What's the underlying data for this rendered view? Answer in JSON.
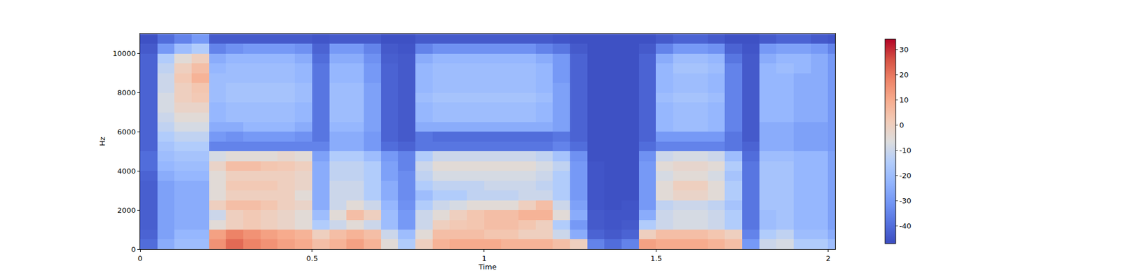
{
  "chart_data": {
    "type": "heatmap",
    "xlabel": "Time",
    "ylabel": "Hz",
    "xlim": [
      0,
      2.02
    ],
    "xticks": [
      0,
      0.5,
      1,
      1.5,
      2
    ],
    "ylim": [
      0,
      11025
    ],
    "yticks": [
      0,
      2000,
      4000,
      6000,
      8000,
      10000
    ],
    "zlim": [
      -47,
      34
    ],
    "zticks": [
      -40,
      -30,
      -20,
      -10,
      0,
      10,
      20,
      30
    ],
    "x": [
      0.025,
      0.075,
      0.125,
      0.175,
      0.225,
      0.275,
      0.325,
      0.375,
      0.425,
      0.475,
      0.525,
      0.575,
      0.625,
      0.675,
      0.725,
      0.775,
      0.825,
      0.875,
      0.925,
      0.975,
      1.025,
      1.075,
      1.125,
      1.175,
      1.225,
      1.275,
      1.325,
      1.375,
      1.425,
      1.475,
      1.525,
      1.575,
      1.625,
      1.675,
      1.725,
      1.775,
      1.825,
      1.875,
      1.925,
      1.975,
      2.025
    ],
    "y": [
      250,
      750,
      1250,
      1750,
      2250,
      2750,
      3250,
      3750,
      4250,
      4750,
      5250,
      5750,
      6250,
      6750,
      7250,
      7750,
      8250,
      8750,
      9250,
      9750,
      10250,
      10750
    ],
    "z": [
      [
        -40,
        -25,
        -20,
        -20,
        15,
        22,
        18,
        15,
        12,
        10,
        5,
        8,
        12,
        8,
        -5,
        -15,
        0,
        8,
        10,
        10,
        10,
        8,
        8,
        8,
        5,
        0,
        -35,
        -40,
        -35,
        12,
        10,
        10,
        10,
        8,
        5,
        -30,
        -10,
        -8,
        -15,
        -15,
        -20
      ],
      [
        -42,
        -28,
        -22,
        -22,
        12,
        18,
        15,
        12,
        10,
        8,
        0,
        5,
        8,
        5,
        -10,
        -20,
        -5,
        5,
        5,
        5,
        3,
        3,
        0,
        0,
        -10,
        -25,
        -42,
        -44,
        -42,
        0,
        5,
        5,
        5,
        3,
        0,
        -35,
        -15,
        -12,
        -20,
        -20,
        -25
      ],
      [
        -43,
        -28,
        -25,
        -25,
        -5,
        0,
        2,
        0,
        -2,
        -5,
        -15,
        -10,
        -5,
        -10,
        -20,
        -30,
        -10,
        0,
        2,
        3,
        5,
        5,
        3,
        0,
        -15,
        -30,
        -44,
        -45,
        -44,
        -15,
        -10,
        -8,
        -8,
        -10,
        -15,
        -38,
        -20,
        -18,
        -22,
        -22,
        -28
      ],
      [
        -43,
        -28,
        -25,
        -25,
        -10,
        0,
        2,
        0,
        -2,
        -5,
        -20,
        -5,
        5,
        0,
        -20,
        -30,
        -10,
        -5,
        0,
        3,
        5,
        5,
        8,
        8,
        -5,
        -25,
        -44,
        -45,
        -45,
        -25,
        -10,
        -8,
        -8,
        -10,
        -15,
        -38,
        -20,
        -18,
        -22,
        -22,
        -28
      ],
      [
        -43,
        -28,
        -25,
        -25,
        0,
        5,
        5,
        3,
        0,
        -2,
        -25,
        -10,
        -5,
        -10,
        -22,
        -32,
        -15,
        -10,
        -8,
        -5,
        -5,
        -5,
        0,
        5,
        -10,
        -28,
        -45,
        -46,
        -45,
        -30,
        -12,
        -10,
        -10,
        -12,
        -18,
        -38,
        -18,
        -18,
        -22,
        -22,
        -28
      ],
      [
        -43,
        -28,
        -25,
        -25,
        -5,
        0,
        0,
        0,
        0,
        -5,
        -25,
        -10,
        -10,
        -15,
        -25,
        -33,
        -20,
        -15,
        -15,
        -12,
        -12,
        -12,
        -10,
        -10,
        -15,
        -30,
        -45,
        -46,
        -46,
        -30,
        -5,
        -2,
        -2,
        -5,
        -15,
        -38,
        -18,
        -18,
        -22,
        -22,
        -28
      ],
      [
        -43,
        -28,
        -25,
        -25,
        -5,
        2,
        2,
        2,
        0,
        -2,
        -25,
        -10,
        -10,
        -15,
        -25,
        -33,
        -15,
        -12,
        -12,
        -12,
        -10,
        -10,
        -10,
        -12,
        -15,
        -30,
        -45,
        -46,
        -46,
        -30,
        -5,
        0,
        0,
        -5,
        -15,
        -38,
        -18,
        -18,
        -22,
        -22,
        -28
      ],
      [
        -42,
        -25,
        -22,
        -22,
        -5,
        0,
        0,
        0,
        0,
        -2,
        -25,
        -12,
        -12,
        -15,
        -28,
        -33,
        -12,
        -8,
        -8,
        -8,
        -8,
        -8,
        -8,
        -10,
        -15,
        -30,
        -45,
        -46,
        -46,
        -30,
        -8,
        -5,
        -5,
        -8,
        -18,
        -38,
        -18,
        -18,
        -22,
        -22,
        -28
      ],
      [
        -40,
        -22,
        -20,
        -20,
        -2,
        5,
        5,
        3,
        2,
        0,
        -25,
        -12,
        -12,
        -15,
        -28,
        -35,
        -10,
        -5,
        -5,
        -5,
        -5,
        -5,
        -5,
        -8,
        -12,
        -30,
        -45,
        -46,
        -46,
        -30,
        -5,
        -3,
        -3,
        -5,
        -15,
        -38,
        -18,
        -18,
        -22,
        -22,
        -28
      ],
      [
        -40,
        -20,
        -18,
        -18,
        -8,
        -5,
        -5,
        -5,
        -3,
        -5,
        -28,
        -15,
        -15,
        -20,
        -30,
        -35,
        -15,
        -10,
        -10,
        -10,
        -10,
        -10,
        -10,
        -12,
        -18,
        -32,
        -46,
        -46,
        -46,
        -32,
        -10,
        -8,
        -8,
        -10,
        -20,
        -40,
        -20,
        -20,
        -22,
        -22,
        -28
      ],
      [
        -42,
        -18,
        -15,
        -15,
        -35,
        -35,
        -35,
        -35,
        -35,
        -35,
        -35,
        -25,
        -25,
        -30,
        -40,
        -42,
        -38,
        -38,
        -38,
        -38,
        -38,
        -38,
        -38,
        -38,
        -35,
        -40,
        -46,
        -46,
        -46,
        -40,
        -35,
        -35,
        -35,
        -35,
        -38,
        -42,
        -25,
        -25,
        -28,
        -28,
        -30
      ],
      [
        -42,
        -15,
        -12,
        -12,
        -30,
        -32,
        -30,
        -30,
        -30,
        -32,
        -38,
        -25,
        -25,
        -30,
        -42,
        -44,
        -38,
        -40,
        -40,
        -40,
        -40,
        -40,
        -40,
        -40,
        -38,
        -42,
        -46,
        -46,
        -46,
        -42,
        -30,
        -30,
        -30,
        -30,
        -38,
        -44,
        -25,
        -25,
        -28,
        -28,
        -30
      ],
      [
        -42,
        -12,
        -8,
        -8,
        -25,
        -25,
        -22,
        -22,
        -22,
        -25,
        -38,
        -22,
        -22,
        -28,
        -42,
        -44,
        -25,
        -25,
        -25,
        -25,
        -25,
        -25,
        -25,
        -25,
        -28,
        -42,
        -46,
        -46,
        -46,
        -42,
        -22,
        -20,
        -20,
        -22,
        -35,
        -44,
        -25,
        -25,
        -28,
        -28,
        -30
      ],
      [
        -42,
        -10,
        -5,
        -5,
        -22,
        -20,
        -20,
        -20,
        -20,
        -22,
        -38,
        -20,
        -20,
        -28,
        -42,
        -44,
        -22,
        -20,
        -20,
        -20,
        -20,
        -20,
        -20,
        -22,
        -28,
        -42,
        -46,
        -46,
        -46,
        -42,
        -22,
        -20,
        -20,
        -22,
        -35,
        -44,
        -22,
        -22,
        -25,
        -25,
        -30
      ],
      [
        -42,
        -8,
        -2,
        -2,
        -22,
        -20,
        -20,
        -20,
        -20,
        -22,
        -38,
        -20,
        -20,
        -28,
        -42,
        -44,
        -22,
        -20,
        -20,
        -20,
        -20,
        -20,
        -20,
        -22,
        -28,
        -42,
        -46,
        -46,
        -46,
        -42,
        -22,
        -20,
        -20,
        -22,
        -35,
        -44,
        -22,
        -22,
        -25,
        -25,
        -30
      ],
      [
        -42,
        -8,
        0,
        2,
        -20,
        -18,
        -18,
        -18,
        -18,
        -20,
        -38,
        -20,
        -20,
        -28,
        -42,
        -44,
        -20,
        -18,
        -18,
        -18,
        -18,
        -18,
        -18,
        -20,
        -28,
        -42,
        -46,
        -46,
        -46,
        -42,
        -20,
        -18,
        -18,
        -20,
        -35,
        -44,
        -22,
        -22,
        -25,
        -25,
        -30
      ],
      [
        -42,
        -10,
        0,
        3,
        -20,
        -18,
        -18,
        -18,
        -18,
        -20,
        -38,
        -20,
        -20,
        -28,
        -42,
        -44,
        -22,
        -20,
        -20,
        -20,
        -20,
        -20,
        -20,
        -22,
        -28,
        -42,
        -46,
        -46,
        -46,
        -42,
        -22,
        -20,
        -20,
        -22,
        -35,
        -44,
        -22,
        -22,
        -25,
        -25,
        -30
      ],
      [
        -42,
        -10,
        2,
        8,
        -20,
        -20,
        -20,
        -20,
        -20,
        -22,
        -38,
        -22,
        -22,
        -30,
        -42,
        -44,
        -22,
        -20,
        -20,
        -20,
        -20,
        -20,
        -20,
        -22,
        -30,
        -42,
        -46,
        -46,
        -46,
        -42,
        -22,
        -20,
        -20,
        -22,
        -35,
        -44,
        -22,
        -22,
        -25,
        -25,
        -30
      ],
      [
        -42,
        -12,
        0,
        5,
        -22,
        -20,
        -20,
        -20,
        -20,
        -22,
        -38,
        -22,
        -22,
        -30,
        -42,
        -44,
        -22,
        -20,
        -20,
        -20,
        -20,
        -20,
        -20,
        -22,
        -30,
        -42,
        -46,
        -46,
        -46,
        -42,
        -22,
        -18,
        -18,
        -20,
        -35,
        -44,
        -22,
        -20,
        -22,
        -25,
        -30
      ],
      [
        -42,
        -15,
        -5,
        0,
        -25,
        -22,
        -22,
        -22,
        -22,
        -25,
        -40,
        -25,
        -25,
        -32,
        -43,
        -44,
        -25,
        -22,
        -22,
        -22,
        -22,
        -22,
        -22,
        -25,
        -30,
        -42,
        -46,
        -46,
        -46,
        -42,
        -25,
        -20,
        -20,
        -22,
        -38,
        -44,
        -25,
        -22,
        -22,
        -25,
        -30
      ],
      [
        -44,
        -30,
        -20,
        -15,
        -35,
        -32,
        -30,
        -30,
        -30,
        -32,
        -42,
        -30,
        -30,
        -35,
        -44,
        -45,
        -35,
        -32,
        -32,
        -32,
        -32,
        -32,
        -32,
        -35,
        -38,
        -44,
        -46,
        -46,
        -46,
        -44,
        -35,
        -30,
        -30,
        -32,
        -42,
        -45,
        -30,
        -28,
        -28,
        -30,
        -35
      ],
      [
        -46,
        -40,
        -35,
        -30,
        -44,
        -44,
        -44,
        -44,
        -44,
        -44,
        -45,
        -44,
        -44,
        -44,
        -46,
        -46,
        -44,
        -44,
        -44,
        -44,
        -44,
        -44,
        -44,
        -44,
        -45,
        -46,
        -46,
        -46,
        -46,
        -46,
        -44,
        -42,
        -42,
        -44,
        -46,
        -46,
        -44,
        -42,
        -42,
        -44,
        -45
      ]
    ]
  }
}
